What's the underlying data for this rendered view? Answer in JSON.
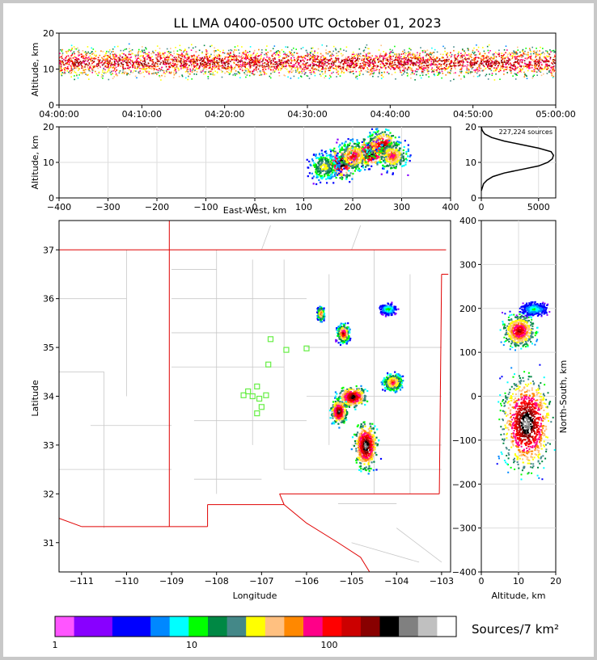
{
  "title": "LL LMA 0400-0500 UTC October 01, 2023",
  "colors": {
    "frame": "#c8c8c8",
    "state_border": "#e00000",
    "county_border": "#c8c8c8",
    "station_marker": "#66ee44",
    "grid": "#dddddd",
    "colorbar": [
      "#ff55ff",
      "#8800ff",
      "#8800ff",
      "#0000ff",
      "#0000ff",
      "#0088ff",
      "#00ffff",
      "#00ff00",
      "#008844",
      "#448888",
      "#ffff00",
      "#ffc080",
      "#ff8800",
      "#ff0088",
      "#ff0000",
      "#cc0000",
      "#880000",
      "#000000",
      "#808080",
      "#c0c0c0",
      "#ffffff"
    ]
  },
  "chart_data": [
    {
      "id": "time-height",
      "type": "heatmap",
      "xlabel": "",
      "ylabel": "Altitude, km",
      "ylim": [
        0,
        20
      ],
      "yticks": [
        "0",
        "10",
        "20"
      ],
      "xticks": [
        "04:00:00",
        "04:10:00",
        "04:20:00",
        "04:30:00",
        "04:40:00",
        "04:50:00",
        "05:00:00"
      ],
      "xlim": [
        "04:00:00",
        "05:00:00"
      ],
      "altitude_band_km": [
        3,
        20
      ],
      "peak_altitude_km": 12
    },
    {
      "id": "east-west-altitude",
      "type": "heatmap",
      "xlabel": "East-West, km",
      "ylabel": "Altitude, km",
      "xlim": [
        -400,
        400
      ],
      "ylim": [
        0,
        20
      ],
      "xticks": [
        "−400",
        "−300",
        "−200",
        "−100",
        "0",
        "100",
        "200",
        "300",
        "400"
      ],
      "yticks": [
        "0",
        "10",
        "20"
      ],
      "grid": true,
      "cells": [
        {
          "x": 175,
          "z": 10,
          "level": 19
        },
        {
          "x": 235,
          "z": 13,
          "level": 19
        },
        {
          "x": 260,
          "z": 15,
          "level": 17
        },
        {
          "x": 200,
          "z": 12,
          "level": 15
        },
        {
          "x": 280,
          "z": 12,
          "level": 14
        },
        {
          "x": 140,
          "z": 9,
          "level": 11
        }
      ]
    },
    {
      "id": "altitude-histogram",
      "type": "line",
      "annotation": "227,224 sources",
      "xlim": [
        0,
        6500
      ],
      "ylim": [
        0,
        20
      ],
      "xticks": [
        "0",
        "5000"
      ],
      "yticks": [
        "0",
        "10",
        "20"
      ],
      "x": [
        0,
        200,
        500,
        1000,
        2000,
        3500,
        5000,
        5800,
        6200,
        6300,
        6100,
        5000,
        3500,
        2000,
        900,
        300,
        80,
        0
      ],
      "y": [
        2,
        4,
        5,
        6,
        7,
        8,
        9,
        10,
        11,
        12,
        13,
        14,
        15,
        16,
        17,
        18,
        19,
        20
      ]
    },
    {
      "id": "plan-view",
      "type": "heatmap",
      "xlabel": "Longitude",
      "ylabel": "Latitude",
      "xlim": [
        -111.5,
        -102.8
      ],
      "ylim": [
        30.4,
        37.6
      ],
      "xticks": [
        "−111",
        "−110",
        "−109",
        "−108",
        "−107",
        "−106",
        "−105",
        "−104",
        "−103"
      ],
      "yticks": [
        "31",
        "32",
        "33",
        "34",
        "35",
        "36",
        "37"
      ],
      "storms": [
        {
          "lon": -105.2,
          "lat": 35.3,
          "rx": 0.18,
          "ry": 0.25,
          "level": 16
        },
        {
          "lon": -105.0,
          "lat": 34.0,
          "rx": 0.45,
          "ry": 0.3,
          "level": 18
        },
        {
          "lon": -105.3,
          "lat": 33.7,
          "rx": 0.25,
          "ry": 0.35,
          "level": 18
        },
        {
          "lon": -104.7,
          "lat": 33.0,
          "rx": 0.35,
          "ry": 0.65,
          "level": 19
        },
        {
          "lon": -104.1,
          "lat": 34.3,
          "rx": 0.3,
          "ry": 0.25,
          "level": 14
        },
        {
          "lon": -104.2,
          "lat": 35.8,
          "rx": 0.25,
          "ry": 0.15,
          "level": 8
        },
        {
          "lon": -105.7,
          "lat": 35.7,
          "rx": 0.1,
          "ry": 0.2,
          "level": 14
        }
      ],
      "stations": [
        {
          "lon": -106.8,
          "lat": 35.17
        },
        {
          "lon": -106.45,
          "lat": 34.95
        },
        {
          "lon": -106.0,
          "lat": 34.98
        },
        {
          "lon": -106.85,
          "lat": 34.65
        },
        {
          "lon": -107.3,
          "lat": 34.1
        },
        {
          "lon": -107.1,
          "lat": 34.2
        },
        {
          "lon": -107.4,
          "lat": 34.02
        },
        {
          "lon": -107.2,
          "lat": 34.0
        },
        {
          "lon": -107.05,
          "lat": 33.95
        },
        {
          "lon": -106.9,
          "lat": 34.02
        },
        {
          "lon": -107.0,
          "lat": 33.78
        },
        {
          "lon": -107.1,
          "lat": 33.65
        }
      ]
    },
    {
      "id": "north-south-altitude",
      "type": "heatmap",
      "xlabel": "Altitude, km",
      "ylabel": "North-South, km",
      "xlim": [
        0,
        20
      ],
      "ylim": [
        -400,
        400
      ],
      "xticks": [
        "0",
        "10",
        "20"
      ],
      "yticks": [
        "400",
        "300",
        "200",
        "100",
        "0",
        "−100",
        "−200",
        "−300",
        "−400"
      ],
      "storms": [
        {
          "z": 10,
          "ns": 150,
          "rz": 6,
          "rns": 50,
          "level": 16
        },
        {
          "z": 12,
          "ns": -60,
          "rz": 9,
          "rns": 140,
          "level": 19
        },
        {
          "z": 14,
          "ns": 200,
          "rz": 5,
          "rns": 20,
          "level": 7
        }
      ]
    }
  ],
  "colorbar": {
    "label": "Sources/7 km²",
    "ticks": [
      "1",
      "10",
      "100"
    ]
  }
}
